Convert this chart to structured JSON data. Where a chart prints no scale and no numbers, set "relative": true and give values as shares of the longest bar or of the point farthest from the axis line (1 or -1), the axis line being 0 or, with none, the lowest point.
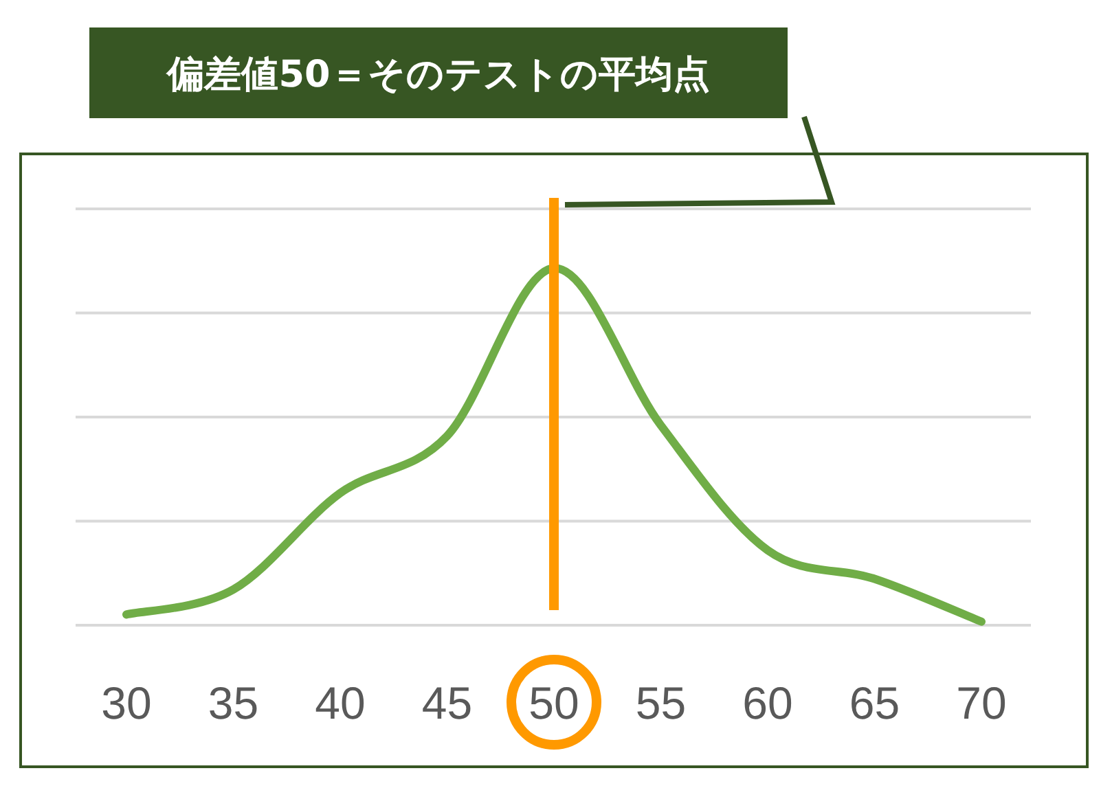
{
  "chart_data": {
    "type": "line",
    "relative": true,
    "grid": "y",
    "categories": [
      "30",
      "35",
      "40",
      "45",
      "50",
      "55",
      "60",
      "65",
      "70"
    ],
    "series": [
      {
        "color": "#70ad47",
        "values": [
          0.03,
          0.1,
          0.37,
          0.53,
          1,
          0.56,
          0.21,
          0.13,
          0.01
        ]
      }
    ],
    "ref_lines": [
      {
        "axis": "x",
        "value": "50",
        "color": "#ff9900",
        "line_style": "solid"
      }
    ],
    "annotations": [
      "偏差値50＝そのテストの平均点"
    ]
  }
}
